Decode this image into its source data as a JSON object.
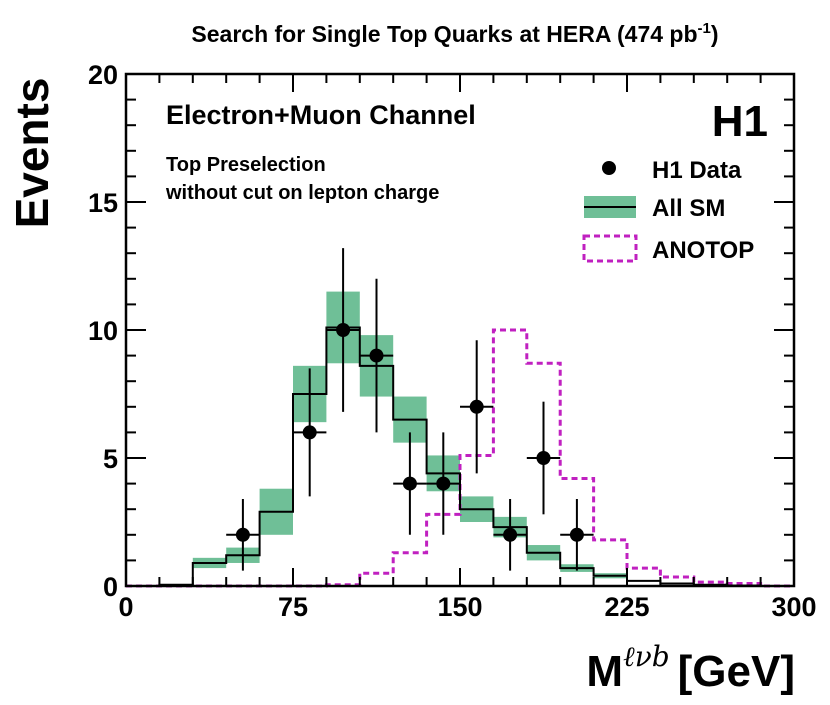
{
  "chart_data": {
    "type": "histogram",
    "title": "Search for Single Top Quarks at HERA (474 pb",
    "title_sup": "-1",
    "title_close": ")",
    "xlabel_main": "M",
    "xlabel_sup": "ℓνb",
    "xlabel_unit": "[GeV]",
    "ylabel": "Events",
    "xlim": [
      0,
      300
    ],
    "ylim": [
      0,
      20
    ],
    "x_ticks": [
      0,
      75,
      150,
      225,
      300
    ],
    "x_tick_labels": [
      "0",
      "75",
      "150",
      "225",
      "300"
    ],
    "y_ticks": [
      0,
      5,
      10,
      15,
      20
    ],
    "y_tick_labels": [
      "0",
      "5",
      "10",
      "15",
      "20"
    ],
    "bin_width": 15,
    "bin_edges": [
      0,
      15,
      30,
      45,
      60,
      75,
      90,
      105,
      120,
      135,
      150,
      165,
      180,
      195,
      210,
      225,
      240,
      255,
      270,
      285,
      300
    ],
    "series": [
      {
        "name": "All SM",
        "style": "step-with-band",
        "color": "#000000",
        "band_color": "#6fbf97",
        "values": [
          0.0,
          0.05,
          0.9,
          1.2,
          2.9,
          7.5,
          10.1,
          8.6,
          6.5,
          4.4,
          3.0,
          2.3,
          1.3,
          0.7,
          0.4,
          0.2,
          0.1,
          0.05,
          0.02,
          0.0
        ],
        "band_half_width": [
          0.0,
          0.0,
          0.2,
          0.3,
          0.9,
          1.1,
          1.4,
          1.2,
          0.9,
          0.7,
          0.5,
          0.4,
          0.3,
          0.15,
          0.1,
          0.0,
          0.0,
          0.0,
          0.0,
          0.0
        ]
      },
      {
        "name": "ANOTOP",
        "style": "step-dashed",
        "color": "#c020c0",
        "values": [
          0.0,
          0.0,
          0.0,
          0.0,
          0.0,
          0.0,
          0.05,
          0.5,
          1.3,
          2.8,
          5.1,
          10.0,
          8.7,
          4.2,
          1.8,
          0.7,
          0.35,
          0.15,
          0.1,
          0.0
        ]
      },
      {
        "name": "H1 Data",
        "style": "points-with-errors",
        "color": "#000000",
        "points": [
          {
            "x": 52.5,
            "y": 2,
            "err_lo": 1.4,
            "err_hi": 1.4
          },
          {
            "x": 82.5,
            "y": 6,
            "err_lo": 2.5,
            "err_hi": 2.5
          },
          {
            "x": 97.5,
            "y": 10,
            "err_lo": 3.2,
            "err_hi": 3.2
          },
          {
            "x": 112.5,
            "y": 9,
            "err_lo": 3.0,
            "err_hi": 3.0
          },
          {
            "x": 127.5,
            "y": 4,
            "err_lo": 2.0,
            "err_hi": 2.0
          },
          {
            "x": 142.5,
            "y": 4,
            "err_lo": 2.0,
            "err_hi": 2.0
          },
          {
            "x": 157.5,
            "y": 7,
            "err_lo": 2.6,
            "err_hi": 2.6
          },
          {
            "x": 172.5,
            "y": 2,
            "err_lo": 1.4,
            "err_hi": 1.4
          },
          {
            "x": 187.5,
            "y": 5,
            "err_lo": 2.2,
            "err_hi": 2.2
          },
          {
            "x": 202.5,
            "y": 2,
            "err_lo": 1.4,
            "err_hi": 1.4
          }
        ]
      }
    ],
    "annotations": {
      "channel": "Electron+Muon Channel",
      "experiment": "H1",
      "selection_line1": "Top Preselection",
      "selection_line2": "without cut on lepton charge"
    },
    "legend": {
      "placement": "top-right",
      "entries": [
        "H1 Data",
        "All SM",
        "ANOTOP"
      ]
    }
  }
}
